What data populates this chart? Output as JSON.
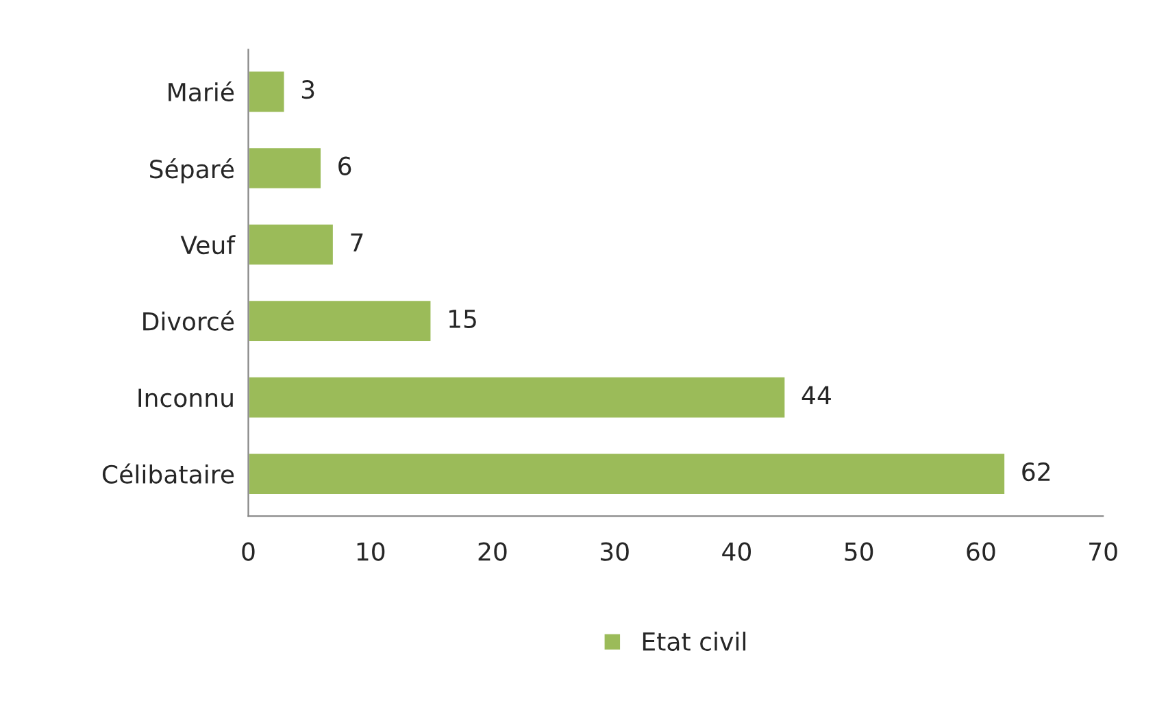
{
  "chart_data": {
    "type": "bar",
    "orientation": "horizontal",
    "categories": [
      "Marié",
      "Séparé",
      "Veuf",
      "Divorcé",
      "Inconnu",
      "Célibataire"
    ],
    "series": [
      {
        "name": "Etat civil",
        "color": "#9bbb59",
        "values": [
          3,
          6,
          7,
          15,
          44,
          62
        ]
      }
    ],
    "xlim": [
      0,
      70
    ],
    "xticks": [
      0,
      10,
      20,
      30,
      40,
      50,
      60,
      70
    ],
    "data_labels": true,
    "legend": "bottom",
    "grid": false
  }
}
